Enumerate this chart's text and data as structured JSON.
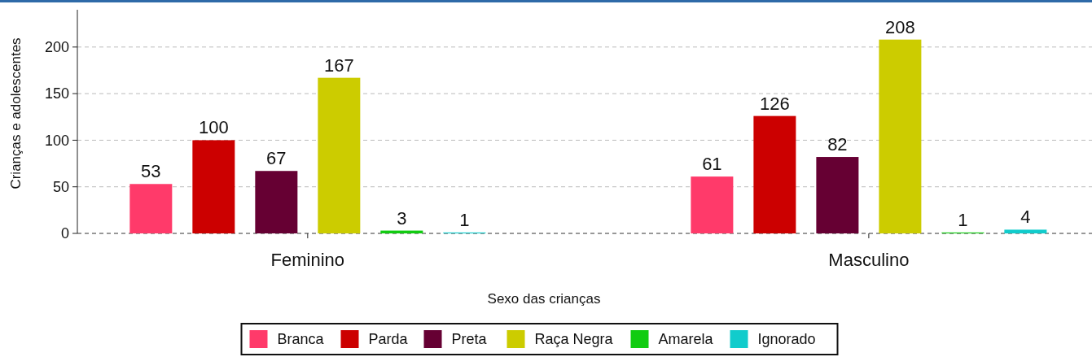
{
  "chart_data": {
    "type": "bar",
    "xlabel": "Sexo das crianças",
    "ylabel": "Crianças e adolescentes",
    "categories": [
      "Feminino",
      "Masculino"
    ],
    "series": [
      {
        "name": "Branca",
        "color": "#ff3a6a",
        "values": [
          53,
          61
        ]
      },
      {
        "name": "Parda",
        "color": "#cc0000",
        "values": [
          100,
          126
        ]
      },
      {
        "name": "Preta",
        "color": "#660033",
        "values": [
          67,
          82
        ]
      },
      {
        "name": "Raça Negra",
        "color": "#cccc00",
        "values": [
          167,
          208
        ]
      },
      {
        "name": "Amarela",
        "color": "#11cc11",
        "values": [
          3,
          1
        ]
      },
      {
        "name": "Ignorado",
        "color": "#11cccc",
        "values": [
          1,
          4
        ]
      }
    ],
    "ylim": [
      0,
      240
    ],
    "yticks": [
      0,
      50,
      100,
      150,
      200
    ],
    "grid": "y",
    "legend": "bottom",
    "data_labels": true
  }
}
